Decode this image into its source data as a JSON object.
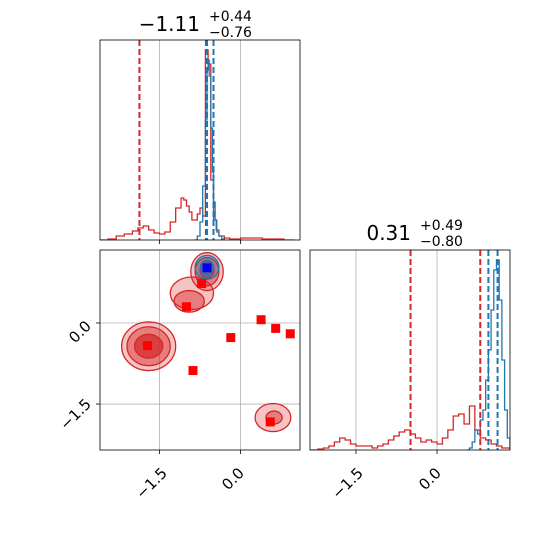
{
  "colors": {
    "red": "#d62728",
    "blue": "#1f77b4",
    "marker_red": "#ff0000",
    "marker_blue": "#0000ff",
    "grid": "#b0b0b0",
    "frame": "#000000"
  },
  "chart_data": [
    {
      "panel": "top-left",
      "type": "histogram",
      "title": {
        "median": "−1.11",
        "upper": "+0.44",
        "lower": "−0.76"
      },
      "xlim": [
        -2.6,
        1.1
      ],
      "ylim": [
        0,
        1.0
      ],
      "grid_x": [
        -1.5,
        0.0
      ],
      "red_vlines": [
        -1.87,
        -0.64
      ],
      "blue_vlines": [
        -0.62,
        -0.5
      ],
      "red_hist": {
        "x": [
          -2.6,
          -2.45,
          -2.3,
          -2.15,
          -2.0,
          -1.9,
          -1.8,
          -1.7,
          -1.6,
          -1.5,
          -1.4,
          -1.3,
          -1.2,
          -1.1,
          -1.05,
          -1.0,
          -0.95,
          -0.9,
          -0.85,
          -0.8,
          -0.75,
          -0.7,
          -0.65,
          -0.6,
          -0.55,
          -0.5,
          -0.45,
          -0.4,
          -0.3,
          -0.2,
          -0.1,
          0.0,
          0.2,
          0.4,
          0.6,
          0.8,
          1.0
        ],
        "y": [
          0.0,
          0.005,
          0.02,
          0.03,
          0.045,
          0.06,
          0.07,
          0.05,
          0.035,
          0.03,
          0.04,
          0.09,
          0.16,
          0.21,
          0.2,
          0.17,
          0.14,
          0.1,
          0.1,
          0.13,
          0.16,
          0.12,
          0.95,
          0.88,
          0.3,
          0.1,
          0.05,
          0.02,
          0.01,
          0.005,
          0.005,
          0.01,
          0.01,
          0.005,
          0.005,
          0.0,
          0.0
        ]
      },
      "blue_hist": {
        "x": [
          -0.85,
          -0.8,
          -0.75,
          -0.7,
          -0.65,
          -0.62,
          -0.6,
          -0.58,
          -0.55,
          -0.52,
          -0.5,
          -0.47,
          -0.44,
          -0.4,
          -0.35,
          -0.3
        ],
        "y": [
          0.0,
          0.02,
          0.09,
          0.27,
          0.6,
          0.85,
          0.9,
          0.82,
          0.56,
          0.34,
          0.19,
          0.1,
          0.04,
          0.02,
          0.005,
          0.0
        ]
      }
    },
    {
      "panel": "bottom-left",
      "type": "scatter",
      "xlim": [
        -2.6,
        1.1
      ],
      "ylim": [
        -2.35,
        1.35
      ],
      "xticks": [
        -1.5,
        0.0
      ],
      "xtick_labels": [
        "−1.5",
        "0.0"
      ],
      "yticks": [
        -1.5,
        0.0
      ],
      "ytick_labels": [
        "−1.5",
        "0.0"
      ],
      "grid": true,
      "red_points": [
        [
          -1.72,
          -0.42
        ],
        [
          -0.88,
          -0.88
        ],
        [
          -1.0,
          0.3
        ],
        [
          -0.72,
          0.73
        ],
        [
          -0.18,
          -0.27
        ],
        [
          0.38,
          0.06
        ],
        [
          0.65,
          -0.1
        ],
        [
          0.92,
          -0.2
        ],
        [
          0.55,
          -1.83
        ]
      ],
      "blue_point": [
        -0.62,
        1.02
      ],
      "contours": [
        {
          "cx": -1.7,
          "cy": -0.43,
          "rx": 0.5,
          "ry": 0.45,
          "level": 1
        },
        {
          "cx": -1.7,
          "cy": -0.43,
          "rx": 0.4,
          "ry": 0.36,
          "level": 2
        },
        {
          "cx": -1.7,
          "cy": -0.43,
          "rx": 0.26,
          "ry": 0.22,
          "level": 3
        },
        {
          "cx": -0.62,
          "cy": 0.95,
          "rx": 0.3,
          "ry": 0.35,
          "level": 1
        },
        {
          "cx": -0.62,
          "cy": 0.95,
          "rx": 0.22,
          "ry": 0.26,
          "level": 2
        },
        {
          "cx": -0.62,
          "cy": 0.98,
          "rx": 0.13,
          "ry": 0.15,
          "level": 3
        },
        {
          "cx": -0.9,
          "cy": 0.55,
          "rx": 0.4,
          "ry": 0.3,
          "level": 1
        },
        {
          "cx": -0.95,
          "cy": 0.4,
          "rx": 0.28,
          "ry": 0.2,
          "level": 2
        },
        {
          "cx": 0.6,
          "cy": -1.75,
          "rx": 0.33,
          "ry": 0.26,
          "level": 1
        },
        {
          "cx": 0.62,
          "cy": -1.75,
          "rx": 0.15,
          "ry": 0.12,
          "level": 2
        }
      ],
      "blue_contours": [
        {
          "cx": -0.62,
          "cy": 1.03,
          "rx": 0.22,
          "ry": 0.22
        },
        {
          "cx": -0.62,
          "cy": 1.03,
          "rx": 0.12,
          "ry": 0.13
        }
      ]
    },
    {
      "panel": "bottom-right",
      "type": "histogram",
      "title": {
        "median": "0.31",
        "upper": "+0.49",
        "lower": "−0.80"
      },
      "xlim": [
        -2.35,
        1.35
      ],
      "ylim": [
        0,
        1.0
      ],
      "grid_x": [
        -1.5,
        0.0
      ],
      "xticks": [
        -1.5,
        0.0
      ],
      "xtick_labels": [
        "−1.5",
        "0.0"
      ],
      "red_vlines": [
        -0.49,
        0.8
      ],
      "blue_vlines": [
        0.95,
        1.12
      ],
      "red_hist": {
        "x": [
          -2.35,
          -2.2,
          -2.1,
          -2.0,
          -1.9,
          -1.8,
          -1.7,
          -1.6,
          -1.5,
          -1.4,
          -1.3,
          -1.2,
          -1.1,
          -1.0,
          -0.9,
          -0.8,
          -0.7,
          -0.6,
          -0.5,
          -0.4,
          -0.3,
          -0.2,
          -0.1,
          0.0,
          0.1,
          0.2,
          0.3,
          0.4,
          0.5,
          0.6,
          0.7,
          0.8,
          0.9,
          1.0,
          1.1,
          1.2,
          1.35
        ],
        "y": [
          0.0,
          0.005,
          0.01,
          0.02,
          0.04,
          0.06,
          0.05,
          0.03,
          0.02,
          0.02,
          0.02,
          0.01,
          0.02,
          0.03,
          0.05,
          0.07,
          0.09,
          0.1,
          0.08,
          0.06,
          0.04,
          0.05,
          0.04,
          0.03,
          0.06,
          0.1,
          0.17,
          0.18,
          0.13,
          0.22,
          0.1,
          0.06,
          0.05,
          0.03,
          0.02,
          0.01,
          0.0
        ]
      },
      "blue_hist": {
        "x": [
          0.55,
          0.6,
          0.65,
          0.7,
          0.75,
          0.8,
          0.85,
          0.9,
          0.95,
          1.0,
          1.05,
          1.1,
          1.15,
          1.2,
          1.25,
          1.3,
          1.35
        ],
        "y": [
          0.0,
          0.01,
          0.04,
          0.1,
          0.08,
          0.15,
          0.2,
          0.35,
          0.5,
          0.7,
          0.9,
          0.95,
          0.75,
          0.45,
          0.2,
          0.06,
          0.0
        ]
      }
    }
  ]
}
